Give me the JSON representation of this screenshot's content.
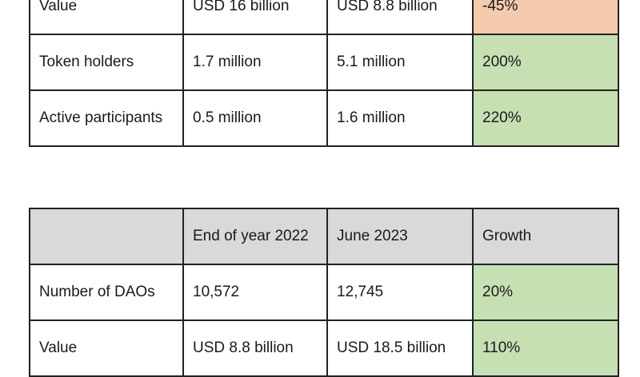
{
  "table_top": {
    "rows": [
      {
        "label": "Value",
        "end_2022": "USD 16 billion",
        "june_2023": "USD 8.8 billion",
        "growth": "-45%"
      },
      {
        "label": "Token holders",
        "end_2022": "1.7 million",
        "june_2023": "5.1 million",
        "growth": "200%"
      },
      {
        "label": "Active participants",
        "end_2022": "0.5 million",
        "june_2023": "1.6 million",
        "growth": "220%"
      }
    ]
  },
  "table_bottom": {
    "header": {
      "label": "",
      "end_2022": "End of year 2022",
      "june_2023": "June 2023",
      "growth": "Growth"
    },
    "rows": [
      {
        "label": "Number of DAOs",
        "end_2022": "10,572",
        "june_2023": "12,745",
        "growth": "20%"
      },
      {
        "label": "Value",
        "end_2022": "USD 8.8 billion",
        "june_2023": "USD 18.5 billion",
        "growth": "110%"
      }
    ]
  },
  "colors": {
    "header_fill": "#d9d9d9",
    "negative_growth_fill": "#f4cbaf",
    "positive_growth_fill": "#c6e0b4",
    "border": "#222222"
  }
}
